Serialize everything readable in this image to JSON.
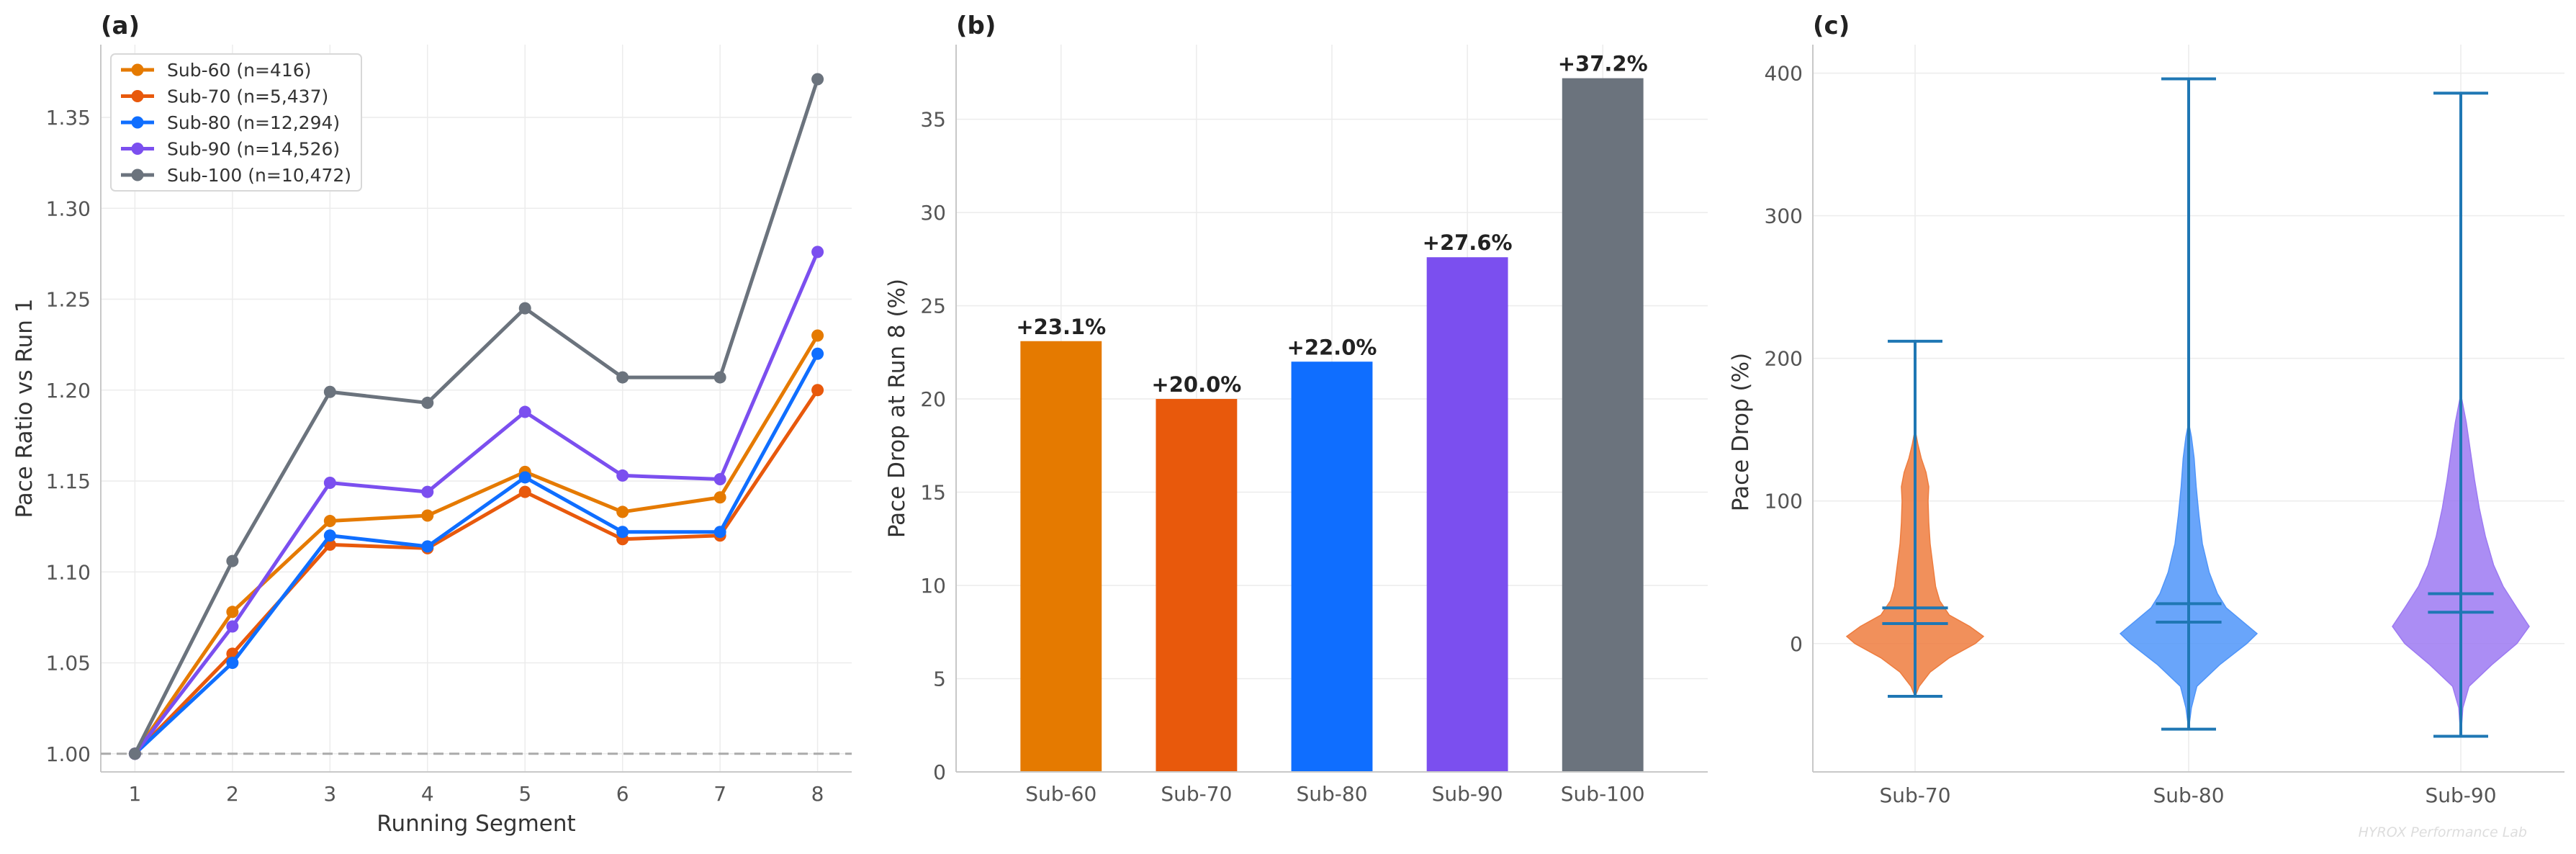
{
  "panels": {
    "a_label": "(a)",
    "b_label": "(b)",
    "c_label": "(c)"
  },
  "watermark": "HYROX Performance Lab",
  "colors": {
    "sub60": "#E57A00",
    "sub70": "#E8590C",
    "sub80": "#0F6EFF",
    "sub90": "#7B4FEF",
    "sub100": "#6B737D",
    "violin_line": "#1F77B4",
    "ref_line": "#aaaaaa"
  },
  "chart_data": [
    {
      "type": "line",
      "panel": "a",
      "xlabel": "Running Segment",
      "ylabel": "Pace Ratio vs Run 1",
      "x": [
        1,
        2,
        3,
        4,
        5,
        6,
        7,
        8
      ],
      "xlim": [
        0.65,
        8.35
      ],
      "ylim": [
        0.99,
        1.39
      ],
      "yticks": [
        1.0,
        1.05,
        1.1,
        1.15,
        1.2,
        1.25,
        1.3,
        1.35
      ],
      "ytick_labels": [
        "1.00",
        "1.05",
        "1.10",
        "1.15",
        "1.20",
        "1.25",
        "1.30",
        "1.35"
      ],
      "reference_line": 1.0,
      "legend_position": "top-left",
      "series": [
        {
          "name": "Sub-60 (n=416)",
          "color": "#E57A00",
          "values": [
            1.0,
            1.078,
            1.128,
            1.131,
            1.155,
            1.133,
            1.141,
            1.23
          ]
        },
        {
          "name": "Sub-70 (n=5,437)",
          "color": "#E8590C",
          "values": [
            1.0,
            1.055,
            1.115,
            1.113,
            1.144,
            1.118,
            1.12,
            1.2
          ]
        },
        {
          "name": "Sub-80 (n=12,294)",
          "color": "#0F6EFF",
          "values": [
            1.0,
            1.05,
            1.12,
            1.114,
            1.152,
            1.122,
            1.122,
            1.22
          ]
        },
        {
          "name": "Sub-90 (n=14,526)",
          "color": "#7B4FEF",
          "values": [
            1.0,
            1.07,
            1.149,
            1.144,
            1.188,
            1.153,
            1.151,
            1.276
          ]
        },
        {
          "name": "Sub-100 (n=10,472)",
          "color": "#6B737D",
          "values": [
            1.0,
            1.106,
            1.199,
            1.193,
            1.245,
            1.207,
            1.207,
            1.371
          ]
        }
      ]
    },
    {
      "type": "bar",
      "panel": "b",
      "xlabel": "",
      "ylabel": "Pace Drop at Run 8 (%)",
      "categories": [
        "Sub-60",
        "Sub-70",
        "Sub-80",
        "Sub-90",
        "Sub-100"
      ],
      "values": [
        23.1,
        20.0,
        22.0,
        27.6,
        37.2
      ],
      "labels": [
        "+23.1%",
        "+20.0%",
        "+22.0%",
        "+27.6%",
        "+37.2%"
      ],
      "colors": [
        "#E57A00",
        "#E8590C",
        "#0F6EFF",
        "#7B4FEF",
        "#6B737D"
      ],
      "ylim": [
        0,
        39
      ],
      "yticks": [
        0,
        5,
        10,
        15,
        20,
        25,
        30,
        35
      ]
    },
    {
      "type": "violin",
      "panel": "c",
      "xlabel": "",
      "ylabel": "Pace Drop (%)",
      "categories": [
        "Sub-70",
        "Sub-80",
        "Sub-90"
      ],
      "colors": [
        "#EE7C3E",
        "#4F95F9",
        "#9C79F2"
      ],
      "ylim": [
        -90,
        420
      ],
      "yticks": [
        0,
        100,
        200,
        300,
        400
      ],
      "violins": [
        {
          "name": "Sub-70",
          "min": -37,
          "max": 212,
          "mean": 25,
          "median": 14,
          "profile": [
            [
              -37,
              0
            ],
            [
              -30,
              0.06
            ],
            [
              -20,
              0.22
            ],
            [
              -10,
              0.5
            ],
            [
              0,
              0.88
            ],
            [
              5,
              1.0
            ],
            [
              12,
              0.8
            ],
            [
              20,
              0.5
            ],
            [
              30,
              0.36
            ],
            [
              40,
              0.3
            ],
            [
              55,
              0.26
            ],
            [
              70,
              0.22
            ],
            [
              85,
              0.2
            ],
            [
              100,
              0.19
            ],
            [
              110,
              0.2
            ],
            [
              120,
              0.16
            ],
            [
              130,
              0.09
            ],
            [
              140,
              0.04
            ],
            [
              150,
              0
            ]
          ]
        },
        {
          "name": "Sub-80",
          "min": -60,
          "max": 396,
          "mean": 28,
          "median": 15,
          "profile": [
            [
              -60,
              0
            ],
            [
              -45,
              0.04
            ],
            [
              -30,
              0.12
            ],
            [
              -15,
              0.45
            ],
            [
              0,
              0.85
            ],
            [
              7,
              1.0
            ],
            [
              15,
              0.8
            ],
            [
              25,
              0.55
            ],
            [
              35,
              0.42
            ],
            [
              50,
              0.3
            ],
            [
              70,
              0.2
            ],
            [
              90,
              0.15
            ],
            [
              110,
              0.11
            ],
            [
              130,
              0.08
            ],
            [
              145,
              0.04
            ],
            [
              155,
              0
            ]
          ]
        },
        {
          "name": "Sub-90",
          "min": -65,
          "max": 386,
          "mean": 35,
          "median": 22,
          "profile": [
            [
              -65,
              0
            ],
            [
              -45,
              0.03
            ],
            [
              -30,
              0.12
            ],
            [
              -15,
              0.45
            ],
            [
              0,
              0.82
            ],
            [
              12,
              1.0
            ],
            [
              25,
              0.82
            ],
            [
              40,
              0.62
            ],
            [
              55,
              0.48
            ],
            [
              75,
              0.36
            ],
            [
              95,
              0.27
            ],
            [
              115,
              0.2
            ],
            [
              135,
              0.14
            ],
            [
              155,
              0.08
            ],
            [
              165,
              0.04
            ],
            [
              175,
              0
            ]
          ]
        }
      ]
    }
  ]
}
